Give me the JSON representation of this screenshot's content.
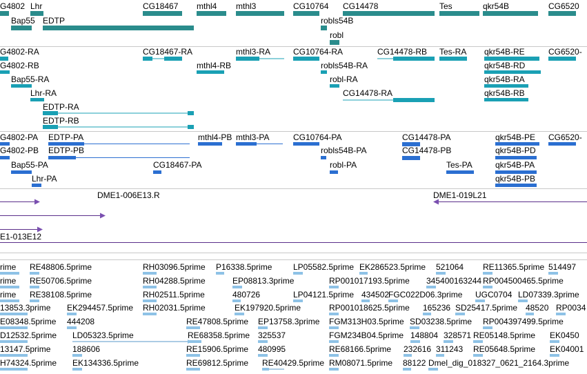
{
  "colors": {
    "gene": "#2a8c8c",
    "transcript": "#1aa0b4",
    "protein": "#2b6fd1",
    "clone": "#7a4fb0",
    "clone_line": "#5a2d8a",
    "est": "#8ec2e6",
    "est_line": "#5a98c8",
    "separator": "#c8c8c8"
  },
  "tracks": {
    "genes": {
      "labels": [
        "G4802",
        "Lhr",
        "CG18467",
        "mthl4",
        "mthl3",
        "CG10764",
        "CG14478",
        "Tes",
        "qkr54B",
        "CG6520",
        "Bap55",
        "EDTP",
        "robls54B",
        "robl"
      ]
    },
    "transcripts": {
      "labels": [
        "G4802-RA",
        "CG18467-RA",
        "mthl3-RA",
        "CG10764-RA",
        "CG14478-RB",
        "Tes-RA",
        "qkr54B-RE",
        "CG6520-",
        "G4802-RB",
        "mthl4-RB",
        "robls54B-RA",
        "qkr54B-RD",
        "Bap55-RA",
        "robl-RA",
        "qkr54B-RA",
        "Lhr-RA",
        "CG14478-RA",
        "qkr54B-RB",
        "EDTP-RA",
        "EDTP-RB"
      ]
    },
    "proteins": {
      "labels": [
        "G4802-PA",
        "EDTP-PA",
        "mthl4-PB",
        "mthl3-PA",
        "CG10764-PA",
        "CG14478-PA",
        "qkr54B-PE",
        "CG6520-",
        "G4802-PB",
        "EDTP-PB",
        "robls54B-PA",
        "CG14478-PB",
        "qkr54B-PD",
        "Bap55-PA",
        "CG18467-PA",
        "robl-PA",
        "Tes-PA",
        "qkr54B-PA",
        "Lhr-PA",
        "qkr54B-PB"
      ]
    },
    "clones": {
      "labels": [
        "DME1-006E13.R",
        "DME1-019L21",
        "E1-013E12"
      ]
    },
    "ests": {
      "labels": [
        "rime",
        "RE48806.5prime",
        "RH03096.5prime",
        "P16338.5prime",
        "LP05582.5prime",
        "EK286523.5prime",
        "521064",
        "RE11365.5prime",
        "514497",
        "rime",
        "RE50706.5prime",
        "RH04288.5prime",
        "EP08813.3prime",
        "RP001017193.5prime",
        "345400163244",
        "RP004500465.5prime",
        "rime",
        "RE38108.5prime",
        "RH02511.5prime",
        "480726",
        "LP04121.5prime",
        "434502",
        "FGC022D06.3prime",
        "UGC0704",
        "LD07339.3prime",
        "13853.3prime",
        "EK294457.5prime",
        "RH02031.5prime",
        "EK197920.5prime",
        "RP001018625.5prime",
        "165236",
        "SD25417.5prime",
        "48520",
        "RP0034",
        "E08348.5prime",
        "444208",
        "RE47808.5prime",
        "EP13758.3prime",
        "FGM313H03.5prime",
        "SD03238.5prime",
        "RP004397499.5prime",
        "D12532.5prime",
        "LD05323.5prime",
        "RE68358.5prime",
        "325537",
        "FGM234B04.5prime",
        "148804",
        "328571",
        "RE05148.5prime",
        "EK0450",
        "13147.5prime",
        "188606",
        "RE15906.5prime",
        "480995",
        "RE68166.5prime",
        "232616",
        "311243",
        "RE05648.5prime",
        "EK04001",
        "H74324.5prime",
        "EK134336.5prime",
        "RE69812.5prime",
        "RE40429.5prime",
        "RM08071.5prime",
        "88122",
        "Dmel_dig_018327_0621_2164.3prime"
      ]
    }
  }
}
